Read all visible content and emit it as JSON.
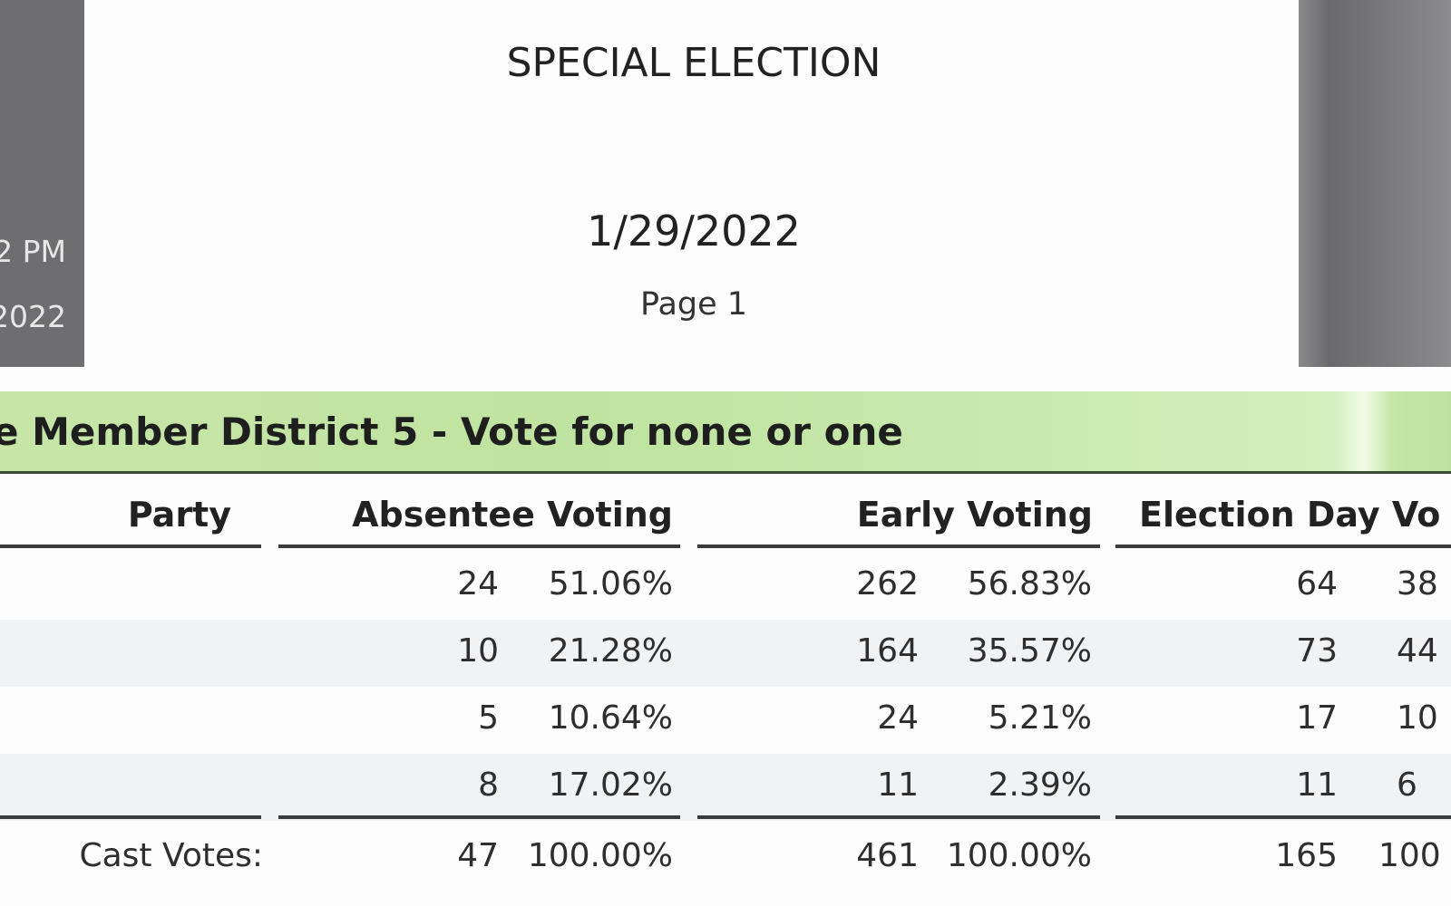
{
  "side_panel_left": {
    "time": "2 PM",
    "date": "2022"
  },
  "header": {
    "title": "SPECIAL ELECTION",
    "date": "1/29/2022",
    "page": "Page 1"
  },
  "contest": {
    "title": "e Member District 5 - Vote for none or one"
  },
  "table": {
    "columns": [
      "Party",
      "Absentee Voting",
      "Early Voting",
      "Election Day Vo"
    ],
    "rows": [
      {
        "absentee_votes": "24",
        "absentee_pct": "51.06%",
        "early_votes": "262",
        "early_pct": "56.83%",
        "eday_votes": "64",
        "eday_pct": "38"
      },
      {
        "absentee_votes": "10",
        "absentee_pct": "21.28%",
        "early_votes": "164",
        "early_pct": "35.57%",
        "eday_votes": "73",
        "eday_pct": "44"
      },
      {
        "absentee_votes": "5",
        "absentee_pct": "10.64%",
        "early_votes": "24",
        "early_pct": "5.21%",
        "eday_votes": "17",
        "eday_pct": "10"
      },
      {
        "absentee_votes": "8",
        "absentee_pct": "17.02%",
        "early_votes": "11",
        "early_pct": "2.39%",
        "eday_votes": "11",
        "eday_pct": "6"
      }
    ],
    "totals": {
      "label": "Cast Votes:",
      "absentee_votes": "47",
      "absentee_pct": "100.00%",
      "early_votes": "461",
      "early_pct": "100.00%",
      "eday_votes": "165",
      "eday_pct": "100"
    }
  },
  "colors": {
    "band": "#c7e6a8",
    "panel": "#6e6e70"
  }
}
